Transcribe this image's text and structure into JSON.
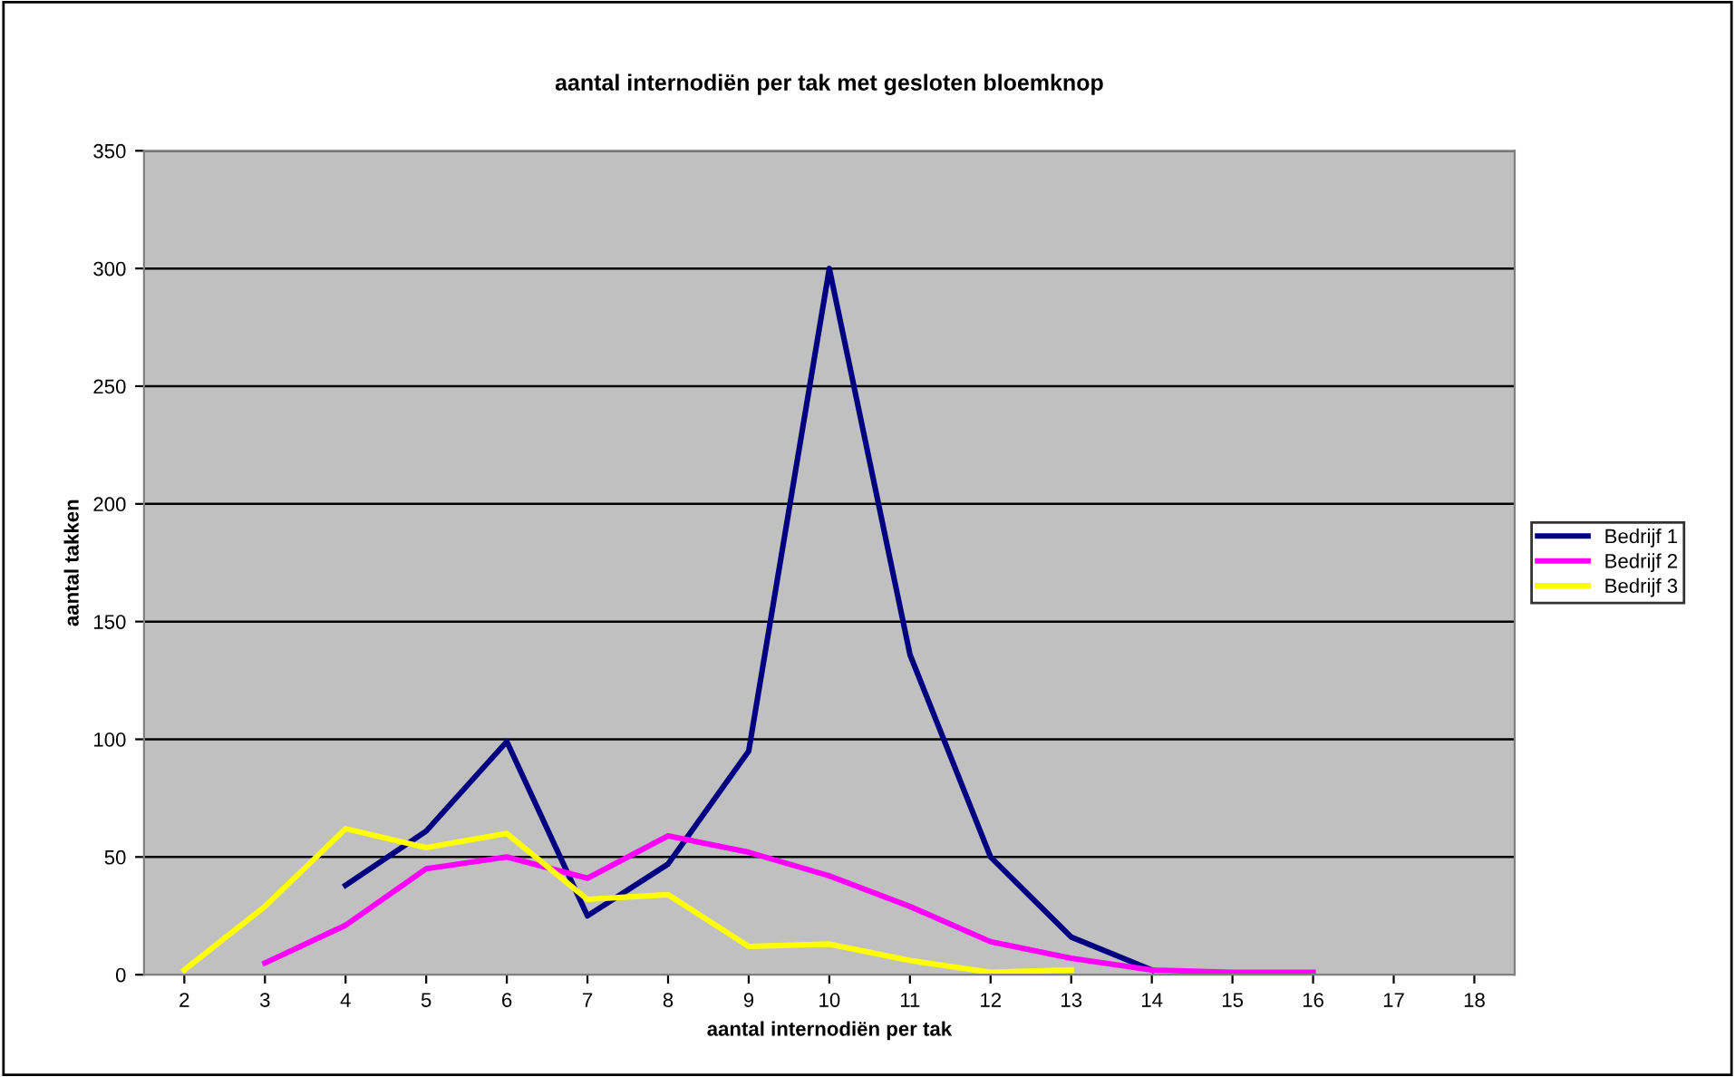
{
  "chart_data": {
    "type": "line",
    "title": "aantal internodiën per tak met gesloten bloemknop",
    "xlabel": "aantal internodiën per tak",
    "ylabel": "aantal takken",
    "categories": [
      "2",
      "3",
      "4",
      "5",
      "6",
      "7",
      "8",
      "9",
      "10",
      "11",
      "12",
      "13",
      "14",
      "15",
      "16",
      "17",
      "18"
    ],
    "series": [
      {
        "name": "Bedrijf 1",
        "color": "#000080",
        "values": [
          null,
          null,
          38,
          61,
          99,
          25,
          47,
          95,
          300,
          136,
          50,
          16,
          2,
          null,
          null,
          null,
          null
        ]
      },
      {
        "name": "Bedrijf 2",
        "color": "#ff00ff",
        "values": [
          null,
          5,
          21,
          45,
          50,
          41,
          59,
          52,
          42,
          29,
          14,
          7,
          2,
          1,
          1,
          null,
          null
        ]
      },
      {
        "name": "Bedrijf 3",
        "color": "#ffff00",
        "values": [
          2,
          29,
          62,
          54,
          60,
          32,
          34,
          12,
          13,
          6,
          1,
          2,
          null,
          null,
          null,
          null,
          null
        ]
      }
    ],
    "ylim": [
      0,
      350
    ],
    "yticks": [
      0,
      50,
      100,
      150,
      200,
      250,
      300,
      350
    ],
    "grid": "y",
    "legend": "right",
    "marker": "none",
    "line_style": "solid"
  }
}
